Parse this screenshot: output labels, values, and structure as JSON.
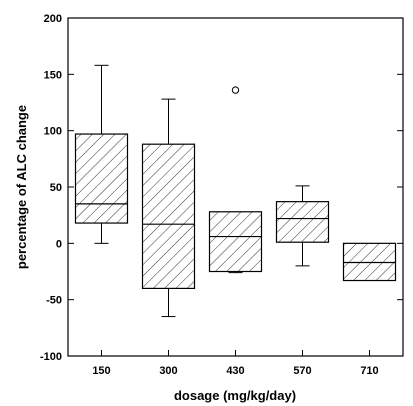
{
  "chart_data": {
    "type": "boxplot",
    "title": "",
    "xlabel": "dosage (mg/kg/day)",
    "ylabel": "percentage of ALC change",
    "ylim": [
      -100,
      200
    ],
    "yticks": [
      -100,
      -50,
      0,
      50,
      100,
      150,
      200
    ],
    "grid": false,
    "legend": "none",
    "categories": [
      "150",
      "300",
      "430",
      "570",
      "710"
    ],
    "boxes": [
      {
        "category": "150",
        "whisker_low": 0,
        "q1": 18,
        "median": 35,
        "q3": 97,
        "whisker_high": 158,
        "outliers": []
      },
      {
        "category": "300",
        "whisker_low": -65,
        "q1": -40,
        "median": 17,
        "q3": 88,
        "whisker_high": 128,
        "outliers": []
      },
      {
        "category": "430",
        "whisker_low": -26,
        "q1": -25,
        "median": 6,
        "q3": 28,
        "whisker_high": 28,
        "outliers": [
          136
        ]
      },
      {
        "category": "570",
        "whisker_low": -20,
        "q1": 1,
        "median": 22,
        "q3": 37,
        "whisker_high": 51,
        "outliers": []
      },
      {
        "category": "710",
        "whisker_low": -33,
        "q1": -33,
        "median": -17,
        "q3": 0,
        "whisker_high": 0,
        "outliers": []
      }
    ],
    "box_fill": "diagonal-hatch",
    "colors": {
      "stroke": "#000000",
      "background": "#ffffff"
    }
  }
}
